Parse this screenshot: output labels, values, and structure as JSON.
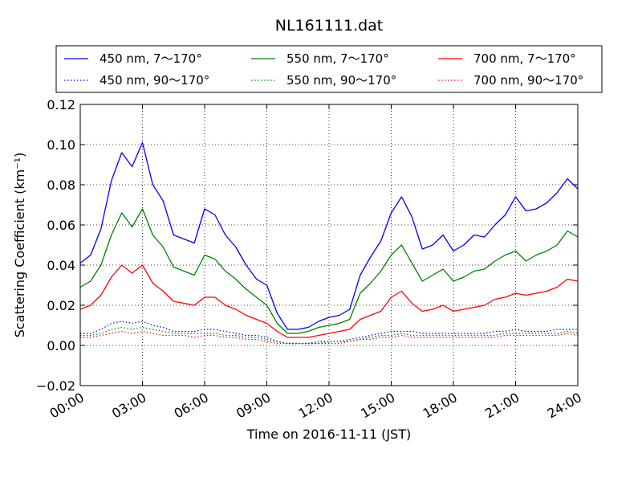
{
  "chart_data": {
    "type": "line",
    "title": "NL161111.dat",
    "xlabel": "Time on 2016-11-11 (JST)",
    "ylabel": "Scattering Coefficient (km⁻¹)",
    "x_unit": "hour",
    "xlim": [
      0,
      24
    ],
    "ylim": [
      -0.02,
      0.12
    ],
    "xticks": [
      0,
      3,
      6,
      9,
      12,
      15,
      18,
      21,
      24
    ],
    "xtick_labels": [
      "00:00",
      "03:00",
      "06:00",
      "09:00",
      "12:00",
      "15:00",
      "18:00",
      "21:00",
      "24:00"
    ],
    "yticks": [
      -0.02,
      0.0,
      0.02,
      0.04,
      0.06,
      0.08,
      0.1,
      0.12
    ],
    "ytick_labels": [
      "−0.02",
      "0.00",
      "0.02",
      "0.04",
      "0.06",
      "0.08",
      "0.10",
      "0.12"
    ],
    "grid": true,
    "legend_position": "above plot",
    "x": [
      0,
      0.5,
      1,
      1.5,
      2,
      2.5,
      3,
      3.5,
      4,
      4.5,
      5,
      5.5,
      6,
      6.5,
      7,
      7.5,
      8,
      8.5,
      9,
      9.5,
      10,
      10.5,
      11,
      11.5,
      12,
      12.5,
      13,
      13.5,
      14,
      14.5,
      15,
      15.5,
      16,
      16.5,
      17,
      17.5,
      18,
      18.5,
      19,
      19.5,
      20,
      20.5,
      21,
      21.5,
      22,
      22.5,
      23,
      23.5,
      24
    ],
    "series": [
      {
        "name": "450 nm, 7～170°",
        "color": "#0000ff",
        "style": "solid",
        "values": [
          0.041,
          0.045,
          0.058,
          0.082,
          0.096,
          0.089,
          0.101,
          0.08,
          0.072,
          0.055,
          0.053,
          0.051,
          0.068,
          0.065,
          0.055,
          0.049,
          0.04,
          0.033,
          0.03,
          0.016,
          0.008,
          0.008,
          0.009,
          0.012,
          0.014,
          0.015,
          0.018,
          0.035,
          0.044,
          0.052,
          0.066,
          0.074,
          0.064,
          0.048,
          0.05,
          0.055,
          0.047,
          0.05,
          0.055,
          0.054,
          0.06,
          0.065,
          0.074,
          0.067,
          0.068,
          0.071,
          0.076,
          0.083,
          0.078
        ]
      },
      {
        "name": "550 nm, 7～170°",
        "color": "#008000",
        "style": "solid",
        "values": [
          0.029,
          0.032,
          0.04,
          0.055,
          0.066,
          0.059,
          0.068,
          0.055,
          0.049,
          0.039,
          0.037,
          0.035,
          0.045,
          0.043,
          0.037,
          0.033,
          0.028,
          0.024,
          0.02,
          0.011,
          0.006,
          0.006,
          0.007,
          0.009,
          0.01,
          0.011,
          0.013,
          0.026,
          0.031,
          0.037,
          0.045,
          0.05,
          0.041,
          0.032,
          0.035,
          0.038,
          0.032,
          0.034,
          0.037,
          0.038,
          0.042,
          0.045,
          0.047,
          0.042,
          0.045,
          0.047,
          0.05,
          0.057,
          0.054
        ]
      },
      {
        "name": "700 nm, 7～170°",
        "color": "#ff0000",
        "style": "solid",
        "values": [
          0.018,
          0.02,
          0.025,
          0.034,
          0.04,
          0.036,
          0.04,
          0.031,
          0.027,
          0.022,
          0.021,
          0.02,
          0.024,
          0.024,
          0.02,
          0.018,
          0.015,
          0.013,
          0.011,
          0.007,
          0.004,
          0.004,
          0.004,
          0.005,
          0.006,
          0.007,
          0.008,
          0.013,
          0.015,
          0.017,
          0.024,
          0.027,
          0.021,
          0.017,
          0.018,
          0.02,
          0.017,
          0.018,
          0.019,
          0.02,
          0.023,
          0.024,
          0.026,
          0.025,
          0.026,
          0.027,
          0.029,
          0.033,
          0.032
        ]
      },
      {
        "name": "450 nm, 90～170°",
        "color": "#0000ff",
        "style": "dotted",
        "values": [
          0.006,
          0.006,
          0.008,
          0.011,
          0.012,
          0.011,
          0.012,
          0.01,
          0.009,
          0.007,
          0.007,
          0.007,
          0.008,
          0.008,
          0.007,
          0.006,
          0.005,
          0.005,
          0.004,
          0.002,
          0.001,
          0.001,
          0.001,
          0.002,
          0.002,
          0.002,
          0.003,
          0.004,
          0.005,
          0.006,
          0.007,
          0.007,
          0.007,
          0.006,
          0.006,
          0.006,
          0.006,
          0.006,
          0.006,
          0.006,
          0.007,
          0.007,
          0.008,
          0.007,
          0.007,
          0.007,
          0.008,
          0.008,
          0.008
        ]
      },
      {
        "name": "550 nm, 90～170°",
        "color": "#008000",
        "style": "dotted",
        "values": [
          0.005,
          0.005,
          0.006,
          0.008,
          0.009,
          0.008,
          0.009,
          0.008,
          0.007,
          0.006,
          0.006,
          0.006,
          0.006,
          0.006,
          0.005,
          0.005,
          0.004,
          0.004,
          0.003,
          0.002,
          0.001,
          0.001,
          0.001,
          0.001,
          0.002,
          0.002,
          0.002,
          0.003,
          0.004,
          0.005,
          0.005,
          0.006,
          0.005,
          0.005,
          0.005,
          0.005,
          0.005,
          0.005,
          0.005,
          0.005,
          0.005,
          0.006,
          0.006,
          0.006,
          0.006,
          0.006,
          0.006,
          0.007,
          0.006
        ]
      },
      {
        "name": "700 nm, 90～170°",
        "color": "#ff0000",
        "style": "dotted",
        "values": [
          0.004,
          0.004,
          0.005,
          0.006,
          0.007,
          0.006,
          0.007,
          0.006,
          0.005,
          0.005,
          0.005,
          0.004,
          0.005,
          0.005,
          0.004,
          0.004,
          0.003,
          0.003,
          0.002,
          0.001,
          0.001,
          0.001,
          0.001,
          0.001,
          0.001,
          0.001,
          0.002,
          0.003,
          0.003,
          0.004,
          0.004,
          0.005,
          0.004,
          0.004,
          0.004,
          0.004,
          0.004,
          0.004,
          0.004,
          0.004,
          0.004,
          0.005,
          0.005,
          0.005,
          0.005,
          0.005,
          0.005,
          0.006,
          0.005
        ]
      }
    ]
  }
}
